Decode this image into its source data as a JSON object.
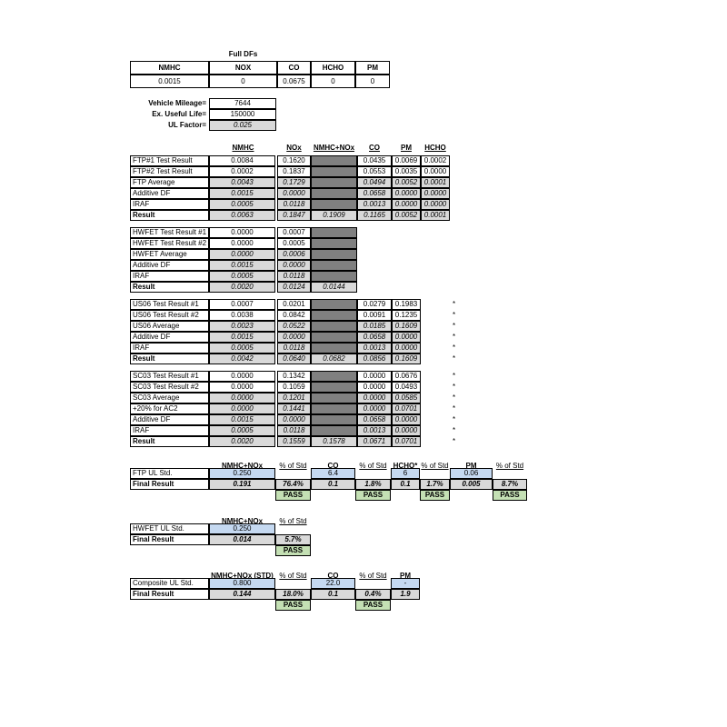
{
  "full_dfs": {
    "title": "Full DFs",
    "headers": [
      "NMHC",
      "NOX",
      "CO",
      "HCHO",
      "PM"
    ],
    "values": [
      "0.0015",
      "0",
      "0.0675",
      "0",
      "0"
    ]
  },
  "mileage": [
    {
      "label": "Vehicle Mileage=",
      "value": "7644",
      "kind": "input"
    },
    {
      "label": "Ex. Useful Life=",
      "value": "150000",
      "kind": "input"
    },
    {
      "label": "UL Factor=",
      "value": "0.025",
      "kind": "calc"
    }
  ],
  "test_headers": [
    "NMHC",
    "NOx",
    "NMHC+NOx",
    "CO",
    "PM",
    "HCHO"
  ],
  "blocks": [
    {
      "name": "ftp",
      "rows": [
        {
          "label": "FTP#1 Test Result",
          "kind": "input",
          "values": [
            "0.0084",
            "0.1620",
            null,
            "0.0435",
            "0.0069",
            "0.0002"
          ]
        },
        {
          "label": "FTP#2 Test Result",
          "kind": "input",
          "values": [
            "0.0002",
            "0.1837",
            null,
            "0.0553",
            "0.0035",
            "0.0000"
          ]
        },
        {
          "label": "FTP Average",
          "kind": "calc",
          "values": [
            "0.0043",
            "0.1729",
            null,
            "0.0494",
            "0.0052",
            "0.0001"
          ]
        },
        {
          "label": "Additive DF",
          "kind": "calc",
          "values": [
            "0.0015",
            "0.0000",
            null,
            "0.0658",
            "0.0000",
            "0.0000"
          ]
        },
        {
          "label": "IRAF",
          "kind": "calc",
          "values": [
            "0.0005",
            "0.0118",
            null,
            "0.0013",
            "0.0000",
            "0.0000"
          ]
        },
        {
          "label": "Result",
          "kind": "result",
          "values": [
            "0.0063",
            "0.1847",
            "0.1909",
            "0.1165",
            "0.0052",
            "0.0001"
          ]
        }
      ]
    },
    {
      "name": "hwfet",
      "rows": [
        {
          "label": "HWFET Test Result #1",
          "kind": "input",
          "values": [
            "0.0000",
            "0.0007",
            null
          ]
        },
        {
          "label": "HWFET Test Result #2",
          "kind": "input",
          "values": [
            "0.0000",
            "0.0005",
            null
          ]
        },
        {
          "label": "HWFET Average",
          "kind": "calc",
          "values": [
            "0.0000",
            "0.0006",
            null
          ]
        },
        {
          "label": "Additive DF",
          "kind": "calc",
          "values": [
            "0.0015",
            "0.0000",
            null
          ]
        },
        {
          "label": "IRAF",
          "kind": "calc",
          "values": [
            "0.0005",
            "0.0118",
            null
          ]
        },
        {
          "label": "Result",
          "kind": "result",
          "values": [
            "0.0020",
            "0.0124",
            "0.0144"
          ]
        }
      ]
    },
    {
      "name": "us06",
      "mark": "*",
      "rows": [
        {
          "label": "US06 Test Result #1",
          "kind": "input",
          "values": [
            "0.0007",
            "0.0201",
            null,
            "0.0279",
            "0.1983"
          ]
        },
        {
          "label": "US06 Test Result #2",
          "kind": "input",
          "values": [
            "0.0038",
            "0.0842",
            null,
            "0.0091",
            "0.1235"
          ]
        },
        {
          "label": "US06 Average",
          "kind": "calc",
          "values": [
            "0.0023",
            "0.0522",
            null,
            "0.0185",
            "0.1609"
          ]
        },
        {
          "label": "Additive DF",
          "kind": "calc",
          "values": [
            "0.0015",
            "0.0000",
            null,
            "0.0658",
            "0.0000"
          ]
        },
        {
          "label": "IRAF",
          "kind": "calc",
          "values": [
            "0.0005",
            "0.0118",
            null,
            "0.0013",
            "0.0000"
          ]
        },
        {
          "label": "Result",
          "kind": "result",
          "values": [
            "0.0042",
            "0.0640",
            "0.0682",
            "0.0856",
            "0.1609"
          ]
        }
      ]
    },
    {
      "name": "sc03",
      "mark": "*",
      "rows": [
        {
          "label": "SC03 Test Result #1",
          "kind": "input",
          "values": [
            "0.0000",
            "0.1342",
            null,
            "0.0000",
            "0.0676"
          ]
        },
        {
          "label": "SC03 Test Result #2",
          "kind": "input",
          "values": [
            "0.0000",
            "0.1059",
            null,
            "0.0000",
            "0.0493"
          ]
        },
        {
          "label": "SC03 Average",
          "kind": "calc",
          "values": [
            "0.0000",
            "0.1201",
            null,
            "0.0000",
            "0.0585"
          ]
        },
        {
          "label": "+20% for AC2",
          "kind": "calc",
          "values": [
            "0.0000",
            "0.1441",
            null,
            "0.0000",
            "0.0701"
          ]
        },
        {
          "label": "Additive DF",
          "kind": "calc",
          "values": [
            "0.0015",
            "0.0000",
            null,
            "0.0658",
            "0.0000"
          ]
        },
        {
          "label": "IRAF",
          "kind": "calc",
          "values": [
            "0.0005",
            "0.0118",
            null,
            "0.0013",
            "0.0000"
          ]
        },
        {
          "label": "Result",
          "kind": "result",
          "values": [
            "0.0020",
            "0.1559",
            "0.1578",
            "0.0671",
            "0.0701"
          ]
        }
      ]
    }
  ],
  "summaries": [
    {
      "name": "ftp",
      "headers": [
        "NMHC+NOx",
        "% of Std",
        "CO",
        "% of Std",
        "HCHO*",
        "% of Std",
        "PM",
        "% of Std"
      ],
      "std_label": "FTP UL Std.",
      "std": [
        "0.250",
        null,
        "6.4",
        null,
        "6",
        null,
        "0.06",
        null
      ],
      "final_label": "Final Result",
      "final": [
        "0.191",
        "76.4%",
        "0.1",
        "1.8%",
        "0.1",
        "1.7%",
        "0.005",
        "8.7%"
      ],
      "status": [
        null,
        "PASS",
        null,
        "PASS",
        null,
        "PASS",
        null,
        "PASS"
      ]
    },
    {
      "name": "hwfet",
      "headers": [
        "NMHC+NOx",
        "% of Std"
      ],
      "std_label": "HWFET UL Std.",
      "std": [
        "0.250",
        null
      ],
      "final_label": "Final Result",
      "final": [
        "0.014",
        "5.7%"
      ],
      "status": [
        null,
        "PASS"
      ]
    },
    {
      "name": "composite",
      "headers": [
        "NMHC+NOx (STD)",
        "% of Std",
        "CO",
        "% of Std",
        "PM"
      ],
      "std_label": "Composite UL Std.",
      "std": [
        "0.800",
        null,
        "22.0",
        null,
        "-"
      ],
      "final_label": "Final Result",
      "final": [
        "0.144",
        "18.0%",
        "0.1",
        "0.4%",
        "1.9"
      ],
      "status": [
        null,
        "PASS",
        null,
        "PASS",
        null
      ]
    }
  ],
  "colors": {
    "input_std": "#c5d9f1",
    "calc": "#d9d9d9",
    "blocked": "#808080",
    "pass": "#c4e0b4"
  }
}
